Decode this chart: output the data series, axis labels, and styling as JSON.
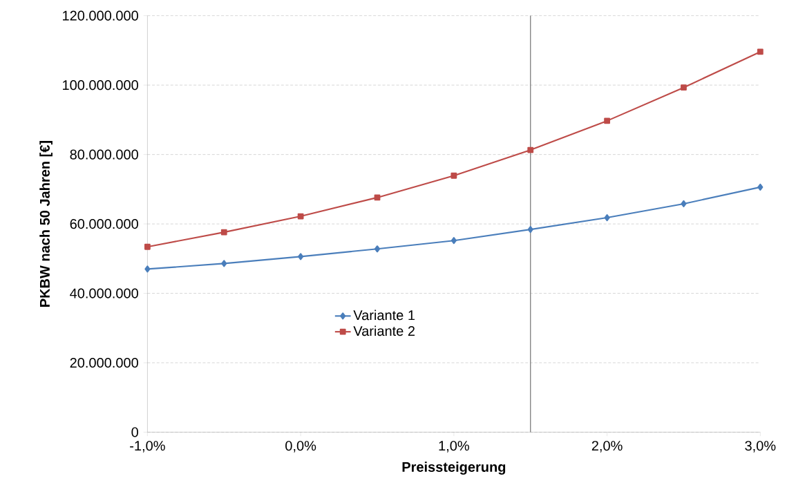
{
  "chart_data": {
    "type": "line",
    "xlabel": "Preissteigerung",
    "ylabel": "PKBW nach 50 Jahren [€]",
    "x": [
      -1.0,
      -0.5,
      0.0,
      0.5,
      1.0,
      1.5,
      2.0,
      2.5,
      3.0
    ],
    "series": [
      {
        "name": "Variante 1",
        "color": "#4a7ebb",
        "marker": "diamond",
        "values": [
          47000000,
          48600000,
          50600000,
          52800000,
          55200000,
          58400000,
          61800000,
          65800000,
          70600000
        ]
      },
      {
        "name": "Variante 2",
        "color": "#be4b48",
        "marker": "square",
        "values": [
          53400000,
          57600000,
          62200000,
          67600000,
          73900000,
          81300000,
          89700000,
          99300000,
          109600000
        ]
      }
    ],
    "xlim": [
      -1.0,
      3.0
    ],
    "ylim": [
      0,
      120000000
    ],
    "xticks": [
      {
        "value": -1.0,
        "label": "-1,0%"
      },
      {
        "value": 0.0,
        "label": "0,0%"
      },
      {
        "value": 1.0,
        "label": "1,0%"
      },
      {
        "value": 2.0,
        "label": "2,0%"
      },
      {
        "value": 3.0,
        "label": "3,0%"
      }
    ],
    "yticks": [
      {
        "value": 0,
        "label": "0"
      },
      {
        "value": 20000000,
        "label": "20.000.000"
      },
      {
        "value": 40000000,
        "label": "40.000.000"
      },
      {
        "value": 60000000,
        "label": "60.000.000"
      },
      {
        "value": 80000000,
        "label": "80.000.000"
      },
      {
        "value": 100000000,
        "label": "100.000.000"
      },
      {
        "value": 120000000,
        "label": "120.000.000"
      }
    ],
    "grid": "y",
    "legend": "bottom",
    "ref_lines": [
      {
        "axis": "x",
        "value": 1.5,
        "color": "#808080"
      }
    ]
  }
}
